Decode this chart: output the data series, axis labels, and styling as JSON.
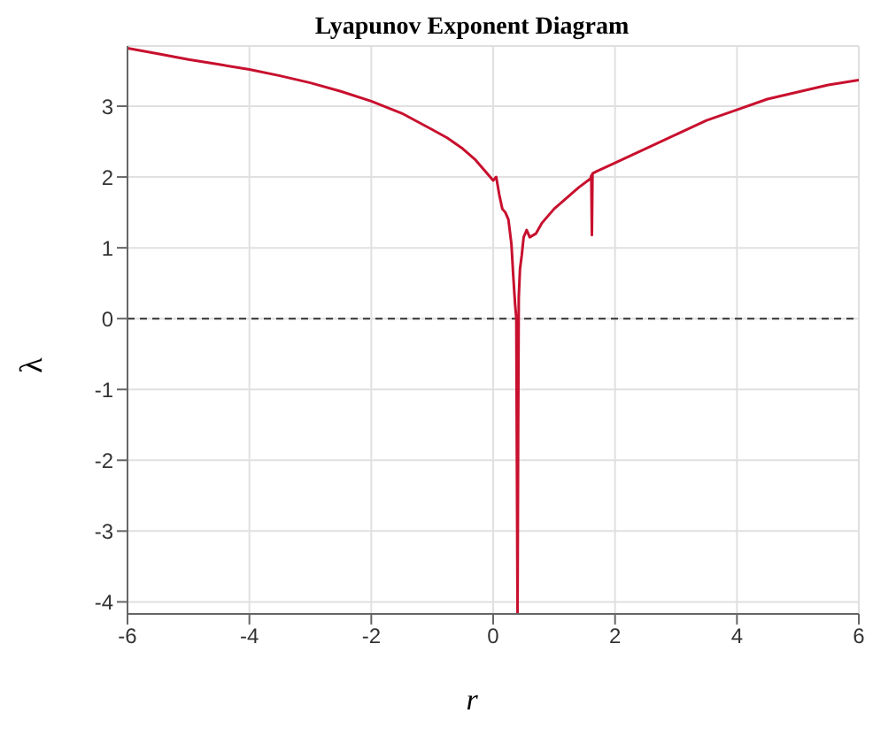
{
  "chart_data": {
    "type": "line",
    "title": "Lyapunov Exponent Diagram",
    "xlabel": "r",
    "ylabel": "λ",
    "x": [
      -6,
      -5.5,
      -5,
      -4.5,
      -4,
      -3.5,
      -3,
      -2.5,
      -2,
      -1.5,
      -1,
      -0.75,
      -0.5,
      -0.3,
      -0.15,
      -0.05,
      0,
      0.05,
      0.1,
      0.15,
      0.2,
      0.25,
      0.3,
      0.33,
      0.36,
      0.38,
      0.4,
      0.41,
      0.42,
      0.44,
      0.47,
      0.5,
      0.55,
      0.6,
      0.7,
      0.8,
      1,
      1.2,
      1.4,
      1.6,
      1.61,
      1.62,
      1.63,
      1.7,
      2,
      2.5,
      3,
      3.5,
      4,
      4.5,
      5,
      5.5,
      6
    ],
    "series": [
      {
        "color": "#c8102e",
        "values": [
          3.82,
          3.74,
          3.66,
          3.59,
          3.52,
          3.43,
          3.33,
          3.21,
          3.07,
          2.9,
          2.67,
          2.55,
          2.4,
          2.25,
          2.1,
          2.0,
          1.95,
          2.0,
          1.75,
          1.55,
          1.5,
          1.4,
          1.05,
          0.6,
          0.2,
          0,
          -4.17,
          -1.6,
          0.3,
          0.7,
          0.9,
          1.15,
          1.25,
          1.15,
          1.2,
          1.35,
          1.55,
          1.7,
          1.85,
          1.98,
          2.02,
          1.18,
          2.05,
          2.08,
          2.2,
          2.4,
          2.6,
          2.8,
          2.95,
          3.1,
          3.2,
          3.3,
          3.37
        ]
      }
    ],
    "xlim": [
      -6,
      6
    ],
    "xticks": [
      -6,
      -4,
      -2,
      0,
      2,
      4,
      6
    ],
    "ylim": [
      -4.17,
      3.85
    ],
    "yticks": [
      -4,
      -3,
      -2,
      -1,
      0,
      1,
      2,
      3
    ],
    "grid": true,
    "line_style": "solid",
    "marker": "none",
    "ref_lines": [
      {
        "axis": "y",
        "value": 0,
        "color": "#333333",
        "line_style": "dashed"
      }
    ]
  }
}
